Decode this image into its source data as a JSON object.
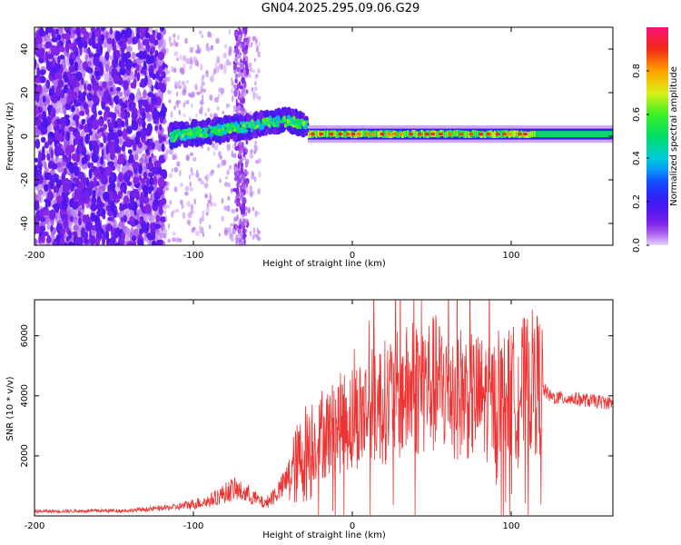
{
  "title": "GN04.2025.295.09.06.G29",
  "colors": {
    "snr_line": "#ee3333",
    "axis": "#000000",
    "background": "#ffffff"
  },
  "chart_data": [
    {
      "type": "heatmap",
      "name": "spectrogram",
      "xlabel": "Height of straight line (km)",
      "ylabel": "Frequency (Hz)",
      "xlim": [
        -200,
        164
      ],
      "ylim": [
        -50,
        50
      ],
      "xticks": [
        -200,
        -100,
        0,
        100
      ],
      "yticks": [
        -40,
        -20,
        0,
        20,
        40
      ],
      "colorbar": {
        "label": "Normalized spectral amplitude",
        "range": [
          0,
          1
        ],
        "ticks": [
          "0.0",
          "0.2",
          "0.4",
          "0.6",
          "0.8"
        ]
      },
      "features": [
        {
          "segment": "noise",
          "x_range": [
            -200,
            -118
          ],
          "freq_spread_hz": 50,
          "amplitude": 0.15
        },
        {
          "segment": "sparse",
          "x_range": [
            -118,
            -72
          ],
          "freq_spread_hz": 45,
          "amplitude": 0.05
        },
        {
          "segment": "ridge",
          "x_range": [
            -115,
            -28
          ],
          "freq_hz_start": 0,
          "freq_hz_peak": 7,
          "amplitude": 0.55
        },
        {
          "segment": "stable_line",
          "x_range": [
            -28,
            164
          ],
          "freq_hz": 1,
          "amplitude": 0.85
        }
      ]
    },
    {
      "type": "line",
      "name": "snr",
      "xlabel": "Height of straight line (km)",
      "ylabel": "SNR (10 * v/v)",
      "xlim": [
        -200,
        164
      ],
      "ylim": [
        0,
        7200
      ],
      "xticks": [
        -200,
        -100,
        0,
        100
      ],
      "yticks": [
        2000,
        4000,
        6000
      ],
      "envelope": [
        {
          "x": -200,
          "y": 150
        },
        {
          "x": -140,
          "y": 180
        },
        {
          "x": -110,
          "y": 300
        },
        {
          "x": -90,
          "y": 500
        },
        {
          "x": -75,
          "y": 900
        },
        {
          "x": -65,
          "y": 700
        },
        {
          "x": -55,
          "y": 400
        },
        {
          "x": -45,
          "y": 900
        },
        {
          "x": -30,
          "y": 2100
        },
        {
          "x": -20,
          "y": 2600
        },
        {
          "x": -10,
          "y": 3000
        },
        {
          "x": 0,
          "y": 3300
        },
        {
          "x": 15,
          "y": 3700
        },
        {
          "x": 30,
          "y": 4000
        },
        {
          "x": 45,
          "y": 4400
        },
        {
          "x": 60,
          "y": 4300
        },
        {
          "x": 75,
          "y": 4000
        },
        {
          "x": 90,
          "y": 3800
        },
        {
          "x": 105,
          "y": 4200
        },
        {
          "x": 115,
          "y": 4500
        },
        {
          "x": 125,
          "y": 3950
        },
        {
          "x": 140,
          "y": 3900
        },
        {
          "x": 164,
          "y": 3750
        }
      ]
    }
  ]
}
